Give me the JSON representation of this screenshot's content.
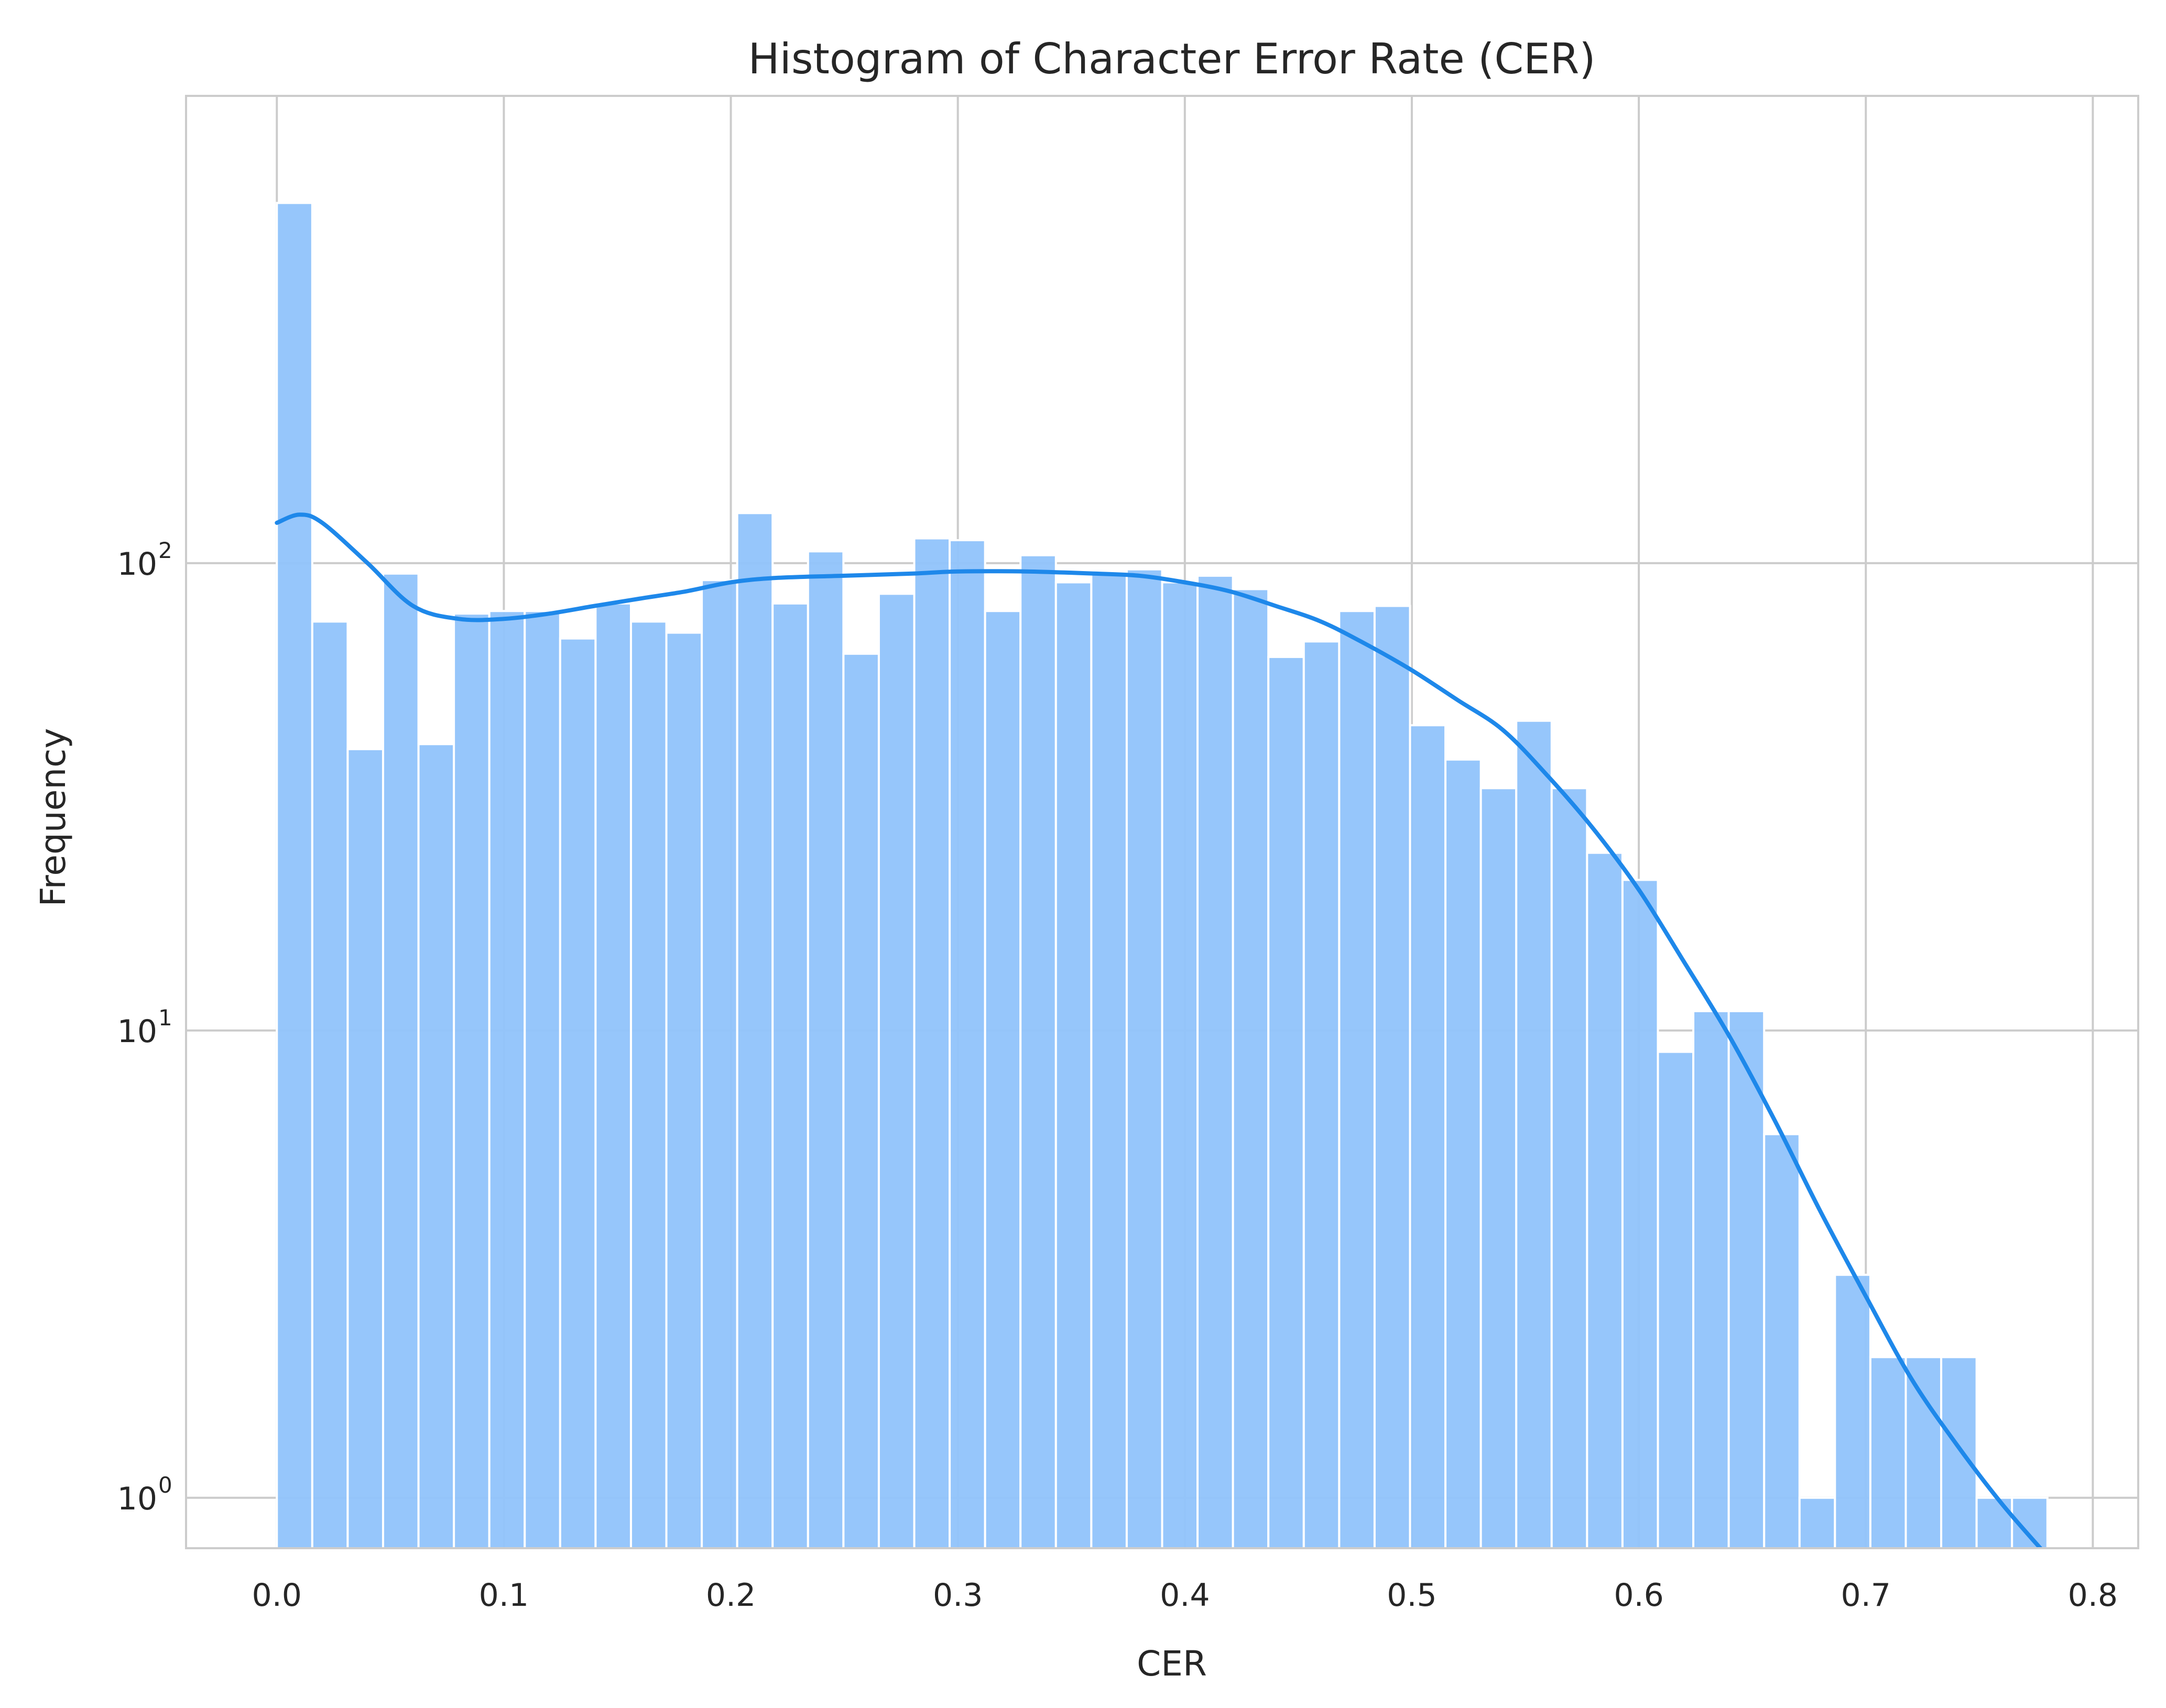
{
  "chart_data": {
    "type": "bar",
    "title": "Histogram of Character Error Rate (CER)",
    "xlabel": "CER",
    "ylabel": "Frequency",
    "yscale": "log",
    "xlim": [
      -0.04,
      0.82
    ],
    "ylim": [
      0.78,
      1000
    ],
    "grid": true,
    "bar_color": "#90c3fb",
    "kde_color": "#1e88ea",
    "x_ticks": [
      {
        "value": 0.0,
        "label": "0.0"
      },
      {
        "value": 0.1,
        "label": "0.1"
      },
      {
        "value": 0.2,
        "label": "0.2"
      },
      {
        "value": 0.3,
        "label": "0.3"
      },
      {
        "value": 0.4,
        "label": "0.4"
      },
      {
        "value": 0.5,
        "label": "0.5"
      },
      {
        "value": 0.6,
        "label": "0.6"
      },
      {
        "value": 0.7,
        "label": "0.7"
      },
      {
        "value": 0.8,
        "label": "0.8"
      }
    ],
    "y_ticks": [
      {
        "value": 1,
        "base": "10",
        "exp": "0"
      },
      {
        "value": 10,
        "base": "10",
        "exp": "1"
      },
      {
        "value": 100,
        "base": "10",
        "exp": "2"
      }
    ],
    "bins": {
      "start": 0.0,
      "width": 0.0156,
      "counts": [
        590,
        75,
        40,
        95,
        41,
        78,
        79,
        79,
        69,
        82,
        75,
        71,
        92,
        128,
        82,
        106,
        64,
        86,
        113,
        112,
        79,
        104,
        91,
        95,
        97,
        91,
        94,
        88,
        63,
        68,
        79,
        81,
        45,
        38,
        33,
        46,
        33,
        24,
        21,
        9,
        11,
        11,
        6,
        1,
        3,
        2,
        2,
        2,
        1,
        1
      ]
    },
    "kde": {
      "x": [
        0.0,
        0.01,
        0.02,
        0.04,
        0.06,
        0.08,
        0.1,
        0.12,
        0.14,
        0.16,
        0.18,
        0.2,
        0.22,
        0.25,
        0.28,
        0.3,
        0.33,
        0.36,
        0.38,
        0.4,
        0.42,
        0.44,
        0.46,
        0.48,
        0.5,
        0.52,
        0.54,
        0.56,
        0.58,
        0.6,
        0.62,
        0.64,
        0.66,
        0.68,
        0.7,
        0.72,
        0.74,
        0.76,
        0.78
      ],
      "y": [
        122,
        127,
        122,
        100,
        81,
        76,
        76,
        78,
        81,
        84,
        87,
        91,
        93,
        94,
        95,
        96,
        96,
        95,
        94,
        91,
        87,
        81,
        75,
        67,
        59,
        51,
        44,
        35,
        27,
        20,
        14,
        9.7,
        6.4,
        4.1,
        2.7,
        1.8,
        1.3,
        0.97,
        0.75
      ]
    }
  }
}
